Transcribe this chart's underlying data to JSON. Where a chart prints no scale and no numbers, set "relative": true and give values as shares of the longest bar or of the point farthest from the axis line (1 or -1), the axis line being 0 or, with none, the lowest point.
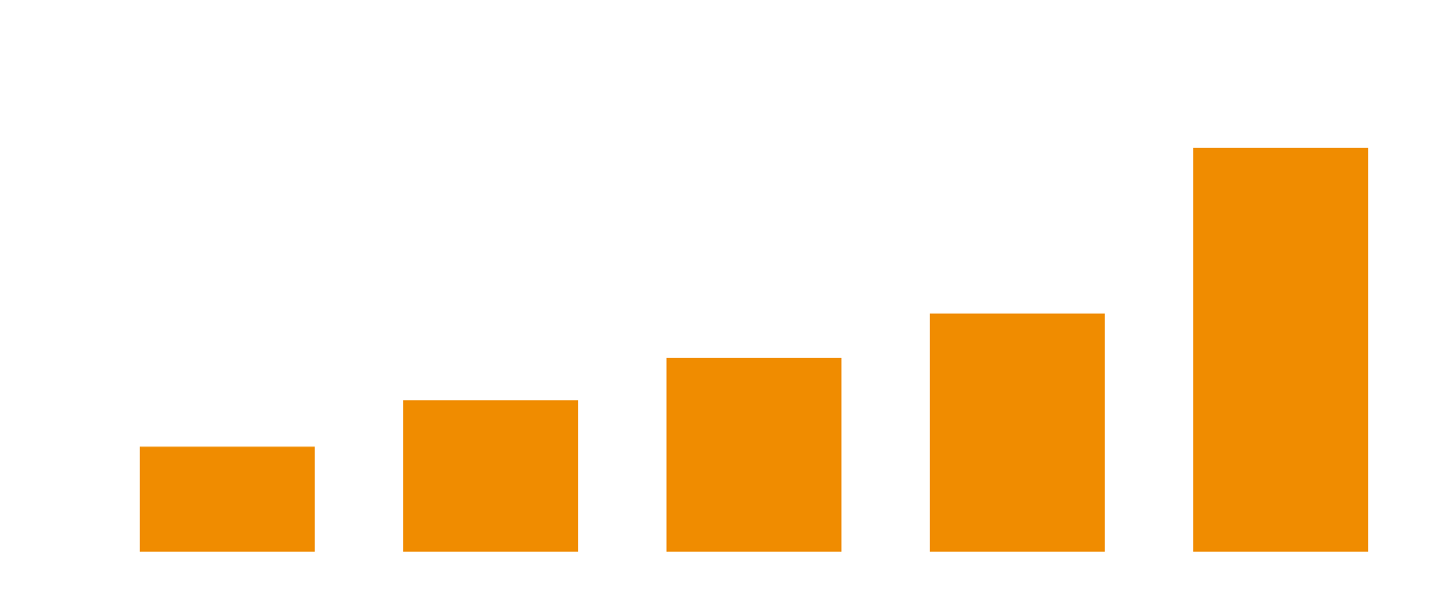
{
  "chart_data": {
    "type": "bar",
    "relative": true,
    "categories": [
      null,
      null,
      null,
      null,
      null
    ],
    "values": [
      0.26,
      0.375,
      0.48,
      0.59,
      1
    ],
    "color": "#f08c00"
  }
}
